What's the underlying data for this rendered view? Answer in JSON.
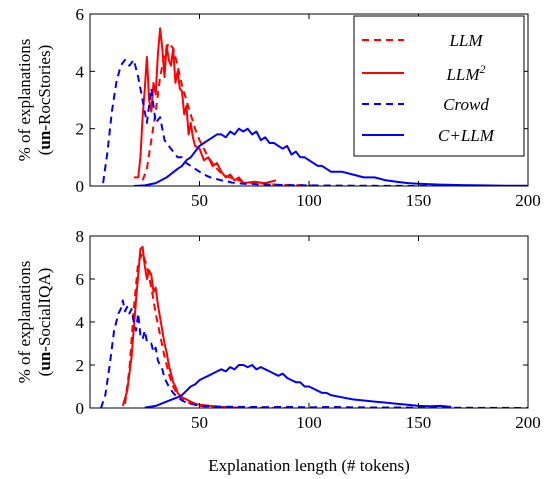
{
  "chart_data": [
    {
      "type": "line",
      "id": "rocstories",
      "ylabel_line1": "% of explanations",
      "ylabel_line2_bold": "un",
      "ylabel_line2_rest": "-RocStories)",
      "xlim": [
        0,
        200
      ],
      "ylim": [
        0,
        6
      ],
      "xticks": [
        "50",
        "100",
        "150",
        "200"
      ],
      "yticks": [
        "0",
        "2",
        "4",
        "6"
      ],
      "legend_position": "top-right",
      "legend": [
        {
          "name": "LLM",
          "style": "dashed",
          "color": "#ff0000"
        },
        {
          "name": "LLM",
          "sup": "2",
          "style": "solid",
          "color": "#ff0000"
        },
        {
          "name": "Crowd",
          "style": "dashed",
          "color": "#0000ff"
        },
        {
          "name": "C+LLM",
          "style": "solid",
          "color": "#0000ff"
        }
      ],
      "series": [
        {
          "key": "llm",
          "color": "#ff0000",
          "style": "dashed",
          "x": [
            24,
            26,
            28,
            30,
            32,
            34,
            36,
            38,
            40,
            42,
            44,
            46,
            48,
            50,
            52,
            54,
            56,
            58,
            60,
            62,
            64,
            66,
            68,
            70,
            75,
            80,
            85,
            90,
            95,
            100,
            105
          ],
          "y": [
            0.2,
            0.6,
            1.6,
            2.6,
            3.8,
            4.6,
            5.0,
            4.8,
            4.2,
            3.5,
            3.0,
            2.5,
            2.0,
            1.6,
            1.3,
            1.0,
            0.8,
            0.6,
            0.45,
            0.35,
            0.3,
            0.25,
            0.2,
            0.15,
            0.1,
            0.08,
            0.05,
            0.04,
            0.03,
            0.02,
            0.0
          ]
        },
        {
          "key": "llm2",
          "color": "#ff0000",
          "style": "solid",
          "x": [
            20,
            22,
            23,
            24,
            25,
            26,
            27,
            28,
            29,
            30,
            31,
            32,
            33,
            34,
            35,
            36,
            37,
            38,
            39,
            40,
            41,
            42,
            43,
            44,
            45,
            46,
            47,
            48,
            50,
            52,
            54,
            56,
            58,
            60,
            62,
            64,
            66,
            68,
            70,
            75,
            80,
            85
          ],
          "y": [
            0.3,
            0.3,
            1.0,
            2.4,
            3.4,
            4.5,
            3.0,
            2.6,
            3.6,
            3.2,
            4.6,
            5.5,
            4.8,
            3.8,
            4.9,
            4.4,
            4.2,
            4.8,
            3.6,
            4.0,
            3.4,
            3.3,
            2.5,
            2.8,
            1.8,
            2.2,
            1.7,
            1.4,
            1.3,
            0.9,
            1.0,
            0.7,
            0.8,
            0.5,
            0.3,
            0.4,
            0.2,
            0.3,
            0.1,
            0.15,
            0.1,
            0.2
          ]
        },
        {
          "key": "crowd",
          "color": "#0000ff",
          "style": "dashed",
          "x": [
            6,
            8,
            10,
            12,
            14,
            16,
            18,
            20,
            22,
            24,
            26,
            28,
            30,
            32,
            34,
            36,
            38,
            40,
            42,
            44,
            46,
            48,
            50,
            52,
            55,
            60,
            65,
            70,
            80,
            90,
            100,
            120,
            150,
            200
          ],
          "y": [
            0.1,
            1.2,
            2.6,
            3.6,
            4.2,
            4.4,
            4.2,
            4.4,
            3.8,
            3.0,
            2.2,
            3.4,
            2.2,
            2.4,
            1.6,
            1.4,
            1.2,
            1.0,
            1.0,
            0.8,
            0.7,
            0.6,
            0.5,
            0.4,
            0.3,
            0.2,
            0.12,
            0.08,
            0.05,
            0.03,
            0.02,
            0.01,
            0.0,
            0.0
          ]
        },
        {
          "key": "cllm",
          "color": "#0000ff",
          "style": "solid",
          "x": [
            20,
            25,
            30,
            35,
            40,
            42,
            44,
            46,
            48,
            50,
            52,
            54,
            56,
            58,
            60,
            62,
            64,
            66,
            68,
            70,
            72,
            74,
            76,
            78,
            80,
            82,
            84,
            86,
            88,
            90,
            92,
            94,
            96,
            98,
            100,
            102,
            104,
            106,
            108,
            110,
            115,
            120,
            125,
            130,
            135,
            140,
            145,
            150,
            160,
            170,
            180,
            190,
            200
          ],
          "y": [
            0.0,
            0.02,
            0.1,
            0.3,
            0.6,
            0.7,
            0.9,
            1.0,
            1.2,
            1.4,
            1.5,
            1.6,
            1.7,
            1.8,
            1.8,
            1.7,
            1.9,
            1.8,
            2.0,
            1.9,
            2.0,
            1.8,
            1.9,
            1.6,
            1.7,
            1.5,
            1.5,
            1.4,
            1.3,
            1.4,
            1.1,
            1.2,
            1.0,
            1.0,
            0.9,
            0.8,
            0.7,
            0.7,
            0.6,
            0.5,
            0.5,
            0.4,
            0.3,
            0.3,
            0.2,
            0.15,
            0.1,
            0.08,
            0.05,
            0.03,
            0.02,
            0.01,
            0.01
          ]
        }
      ]
    },
    {
      "type": "line",
      "id": "socialiqa",
      "ylabel_line1": "% of explanations",
      "ylabel_line2_bold": "un",
      "ylabel_line2_rest": "-SocialIQA)",
      "xlabel": "Explanation length (# tokens)",
      "xlim": [
        0,
        200
      ],
      "ylim": [
        0,
        8
      ],
      "xticks": [
        "50",
        "100",
        "150",
        "200"
      ],
      "yticks": [
        "0",
        "2",
        "4",
        "6",
        "8"
      ],
      "series": [
        {
          "key": "llm",
          "color": "#ff0000",
          "style": "dashed",
          "x": [
            16,
            18,
            20,
            22,
            24,
            26,
            28,
            30,
            32,
            34,
            36,
            38,
            40,
            42,
            44,
            46,
            48,
            50,
            55,
            60,
            65,
            70,
            80,
            90
          ],
          "y": [
            0.2,
            1.8,
            4.6,
            6.8,
            7.2,
            6.6,
            5.6,
            4.4,
            3.4,
            2.4,
            1.6,
            1.0,
            0.6,
            0.4,
            0.3,
            0.2,
            0.15,
            0.1,
            0.05,
            0.03,
            0.02,
            0.01,
            0.01,
            0.0
          ]
        },
        {
          "key": "llm2",
          "color": "#ff0000",
          "style": "solid",
          "x": [
            15,
            17,
            19,
            21,
            23,
            24,
            25,
            26,
            27,
            28,
            29,
            30,
            31,
            32,
            33,
            34,
            35,
            36,
            37,
            38,
            39,
            40,
            42,
            44,
            46,
            48,
            50,
            55,
            60,
            65,
            70
          ],
          "y": [
            0.1,
            0.8,
            2.4,
            5.0,
            7.4,
            7.5,
            6.6,
            6.0,
            6.4,
            6.2,
            5.4,
            5.6,
            4.8,
            4.2,
            3.6,
            3.0,
            2.6,
            2.0,
            1.6,
            1.2,
            1.0,
            0.7,
            0.5,
            0.4,
            0.3,
            0.2,
            0.15,
            0.1,
            0.05,
            0.03,
            0.02
          ]
        },
        {
          "key": "crowd",
          "color": "#0000ff",
          "style": "dashed",
          "x": [
            5,
            7,
            9,
            11,
            13,
            14,
            15,
            16,
            17,
            18,
            19,
            20,
            21,
            22,
            23,
            24,
            25,
            26,
            27,
            28,
            29,
            30,
            31,
            32,
            33,
            34,
            35,
            36,
            38,
            40,
            42,
            44,
            46,
            48,
            50,
            55,
            60,
            70,
            80,
            90,
            100,
            110,
            120,
            150,
            200
          ],
          "y": [
            0.0,
            0.6,
            2.0,
            3.6,
            4.4,
            4.6,
            5.0,
            4.5,
            4.7,
            4.4,
            4.6,
            4.0,
            3.6,
            4.4,
            3.4,
            3.2,
            3.6,
            3.1,
            3.0,
            3.0,
            2.6,
            2.8,
            2.2,
            2.0,
            1.8,
            1.4,
            1.2,
            1.0,
            0.7,
            0.5,
            0.35,
            0.25,
            0.2,
            0.15,
            0.1,
            0.08,
            0.06,
            0.05,
            0.04,
            0.05,
            0.03,
            0.05,
            0.03,
            0.02,
            0.0
          ]
        },
        {
          "key": "cllm",
          "color": "#0000ff",
          "style": "solid",
          "x": [
            25,
            30,
            35,
            40,
            42,
            44,
            46,
            48,
            50,
            52,
            54,
            56,
            58,
            60,
            62,
            64,
            66,
            68,
            70,
            72,
            74,
            76,
            78,
            80,
            82,
            84,
            86,
            88,
            90,
            92,
            94,
            96,
            98,
            100,
            102,
            104,
            106,
            108,
            110,
            115,
            120,
            125,
            130,
            135,
            140,
            145,
            150,
            155,
            160,
            165
          ],
          "y": [
            0.02,
            0.1,
            0.3,
            0.5,
            0.6,
            0.8,
            1.0,
            1.1,
            1.3,
            1.4,
            1.5,
            1.6,
            1.7,
            1.8,
            1.7,
            1.9,
            1.8,
            2.0,
            2.0,
            1.9,
            2.0,
            1.8,
            1.9,
            1.8,
            1.7,
            1.6,
            1.5,
            1.6,
            1.4,
            1.3,
            1.2,
            1.2,
            1.0,
            1.0,
            0.9,
            0.8,
            0.7,
            0.7,
            0.6,
            0.5,
            0.4,
            0.35,
            0.3,
            0.25,
            0.2,
            0.15,
            0.1,
            0.08,
            0.1,
            0.05
          ]
        }
      ]
    }
  ]
}
